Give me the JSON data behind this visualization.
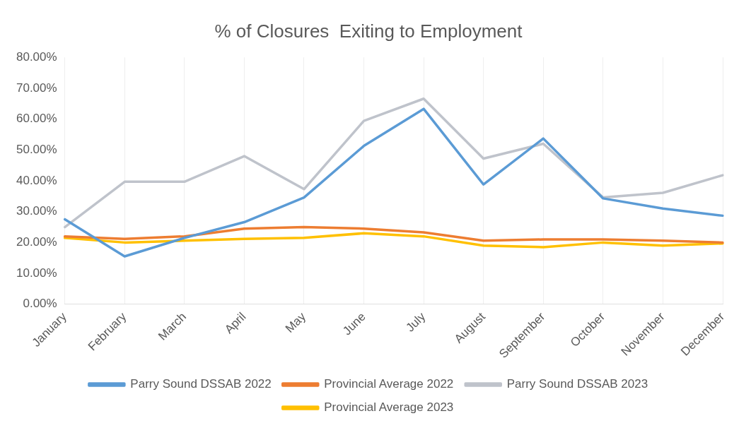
{
  "chart_data": {
    "type": "line",
    "title": "% of Closures  Exiting to Employment",
    "categories": [
      "January",
      "February",
      "March",
      "April",
      "May",
      "June",
      "July",
      "August",
      "September",
      "October",
      "November",
      "December"
    ],
    "series": [
      {
        "name": "Parry Sound DSSAB 2022",
        "color": "#5b9bd5",
        "values": [
          27.5,
          15.5,
          21.5,
          26.6,
          34.6,
          51.3,
          63.3,
          38.8,
          53.7,
          34.3,
          31,
          28.7
        ]
      },
      {
        "name": "Provincial Average 2022",
        "color": "#ed7d31",
        "values": [
          22,
          21.2,
          22,
          24.5,
          25,
          24.5,
          23.3,
          20.6,
          21,
          21,
          20.6,
          20
        ]
      },
      {
        "name": "Parry Sound DSSAB 2023",
        "color": "#bfc3cb",
        "values": [
          25,
          39.7,
          39.7,
          48,
          37.3,
          59.4,
          66.6,
          47.2,
          52,
          34.6,
          36.1,
          41.8
        ]
      },
      {
        "name": "Provincial Average 2023",
        "color": "#ffc000",
        "values": [
          21.5,
          20,
          20.6,
          21.2,
          21.5,
          23,
          22,
          19,
          18.5,
          20,
          19,
          19.7
        ]
      }
    ],
    "ylim": [
      0,
      80
    ],
    "yticks": [
      {
        "value": 0,
        "label": "0.00%"
      },
      {
        "value": 10,
        "label": "10.00%"
      },
      {
        "value": 20,
        "label": "20.00%"
      },
      {
        "value": 30,
        "label": "30.00%"
      },
      {
        "value": 40,
        "label": "40.00%"
      },
      {
        "value": 50,
        "label": "50.00%"
      },
      {
        "value": 60,
        "label": "60.00%"
      },
      {
        "value": 70,
        "label": "70.00%"
      },
      {
        "value": 80,
        "label": "80.00%"
      }
    ],
    "grid": "x",
    "legend": "bottom",
    "marker": "none",
    "line_style": "solid"
  }
}
